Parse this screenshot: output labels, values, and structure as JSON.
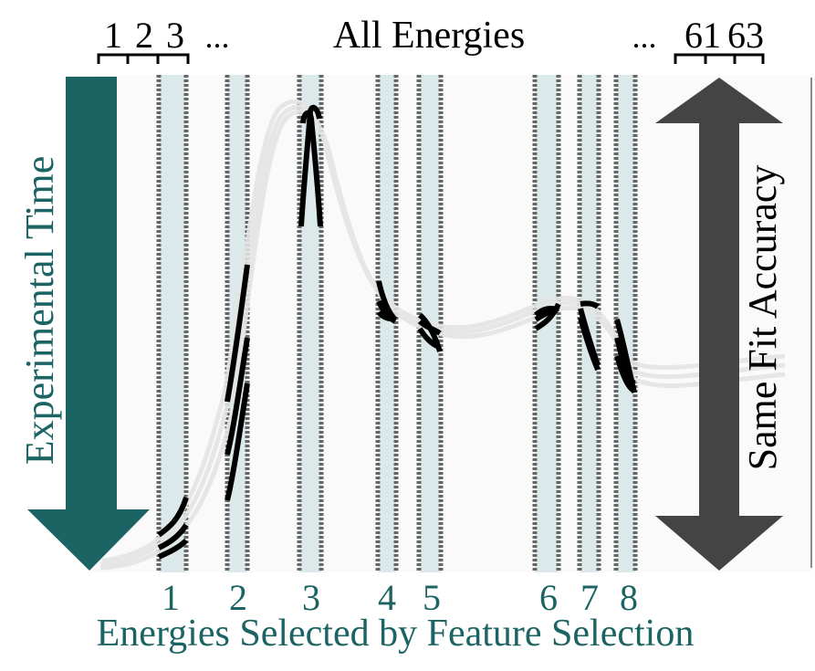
{
  "header": {
    "title": "All Energies",
    "left_indices": [
      "1",
      "2",
      "3"
    ],
    "left_ellipsis": "...",
    "right_ellipsis": "...",
    "right_indices": [
      "61",
      "63"
    ]
  },
  "left_arrow": {
    "label": "Experimental Time"
  },
  "right_arrow": {
    "label": "Same Fit Accuracy"
  },
  "selected_energies": {
    "numbers": [
      "1",
      "2",
      "3",
      "4",
      "5",
      "6",
      "7",
      "8"
    ],
    "caption": "Energies Selected by Feature Selection"
  },
  "colors": {
    "teal": "#1c6463",
    "dark_gray": "#444444",
    "band_fill": "#dce9ea",
    "band_edge": "#666666",
    "curve_faint": "#e4e4e4",
    "curve_bold": "#000000",
    "text": "#000000"
  }
}
